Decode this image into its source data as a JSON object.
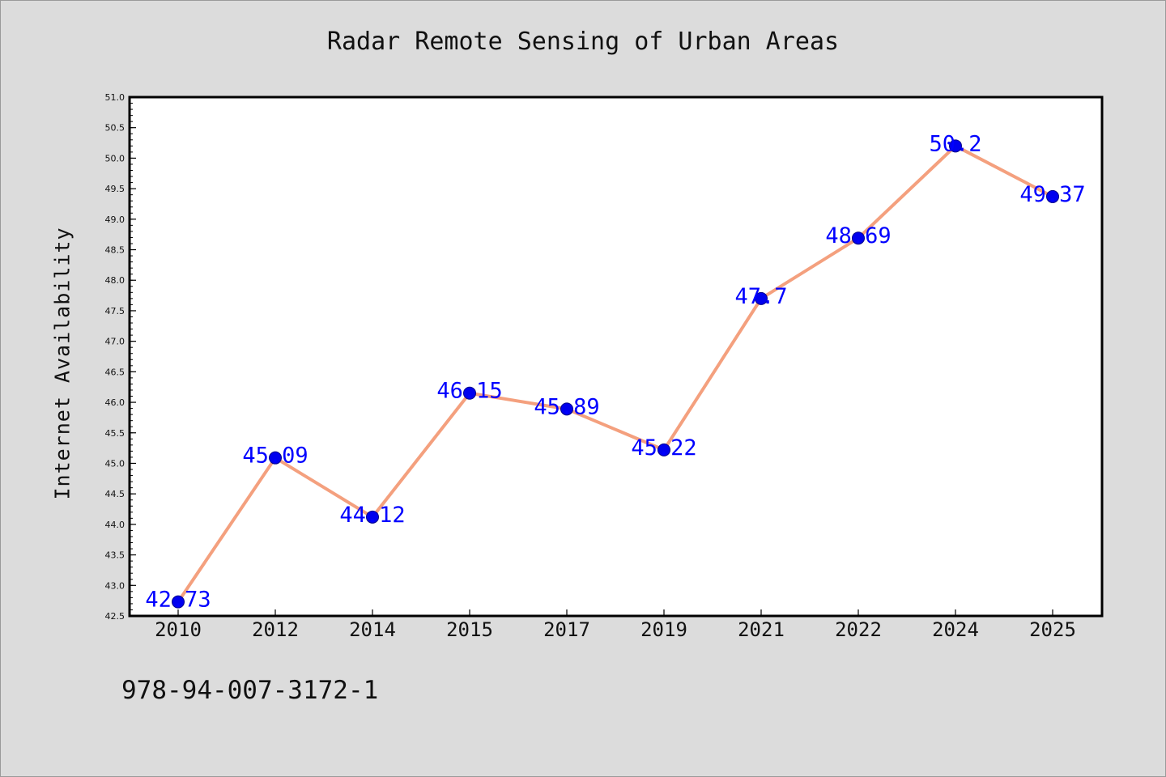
{
  "chart_data": {
    "type": "line",
    "title": "Radar Remote Sensing of Urban Areas",
    "ylabel": "Internet Availability",
    "xlabel": "",
    "categories": [
      "2010",
      "2012",
      "2014",
      "2015",
      "2017",
      "2019",
      "2021",
      "2022",
      "2024",
      "2025"
    ],
    "values": [
      42.73,
      45.09,
      44.12,
      46.15,
      45.89,
      45.22,
      47.7,
      48.69,
      50.2,
      49.37
    ],
    "data_labels": [
      "42.73",
      "45.09",
      "44.12",
      "46.15",
      "45.89",
      "45.22",
      "47.7",
      "48.69",
      "50.2",
      "49.37"
    ],
    "ylim": [
      42.5,
      51.0
    ],
    "yticks": [
      "42.5",
      "43.0",
      "43.5",
      "44.0",
      "44.5",
      "45.0",
      "45.5",
      "46.0",
      "46.5",
      "47.0",
      "47.5",
      "48.0",
      "48.5",
      "49.0",
      "49.5",
      "50.0",
      "50.5",
      "51.0"
    ],
    "grid": false,
    "legend": "none",
    "colors": {
      "line": "#f4a07e",
      "marker": "#0000ee",
      "marker_edge": "#00008b",
      "label": "#0000ff"
    }
  },
  "footer": {
    "isbn": "978-94-007-3172-1"
  }
}
